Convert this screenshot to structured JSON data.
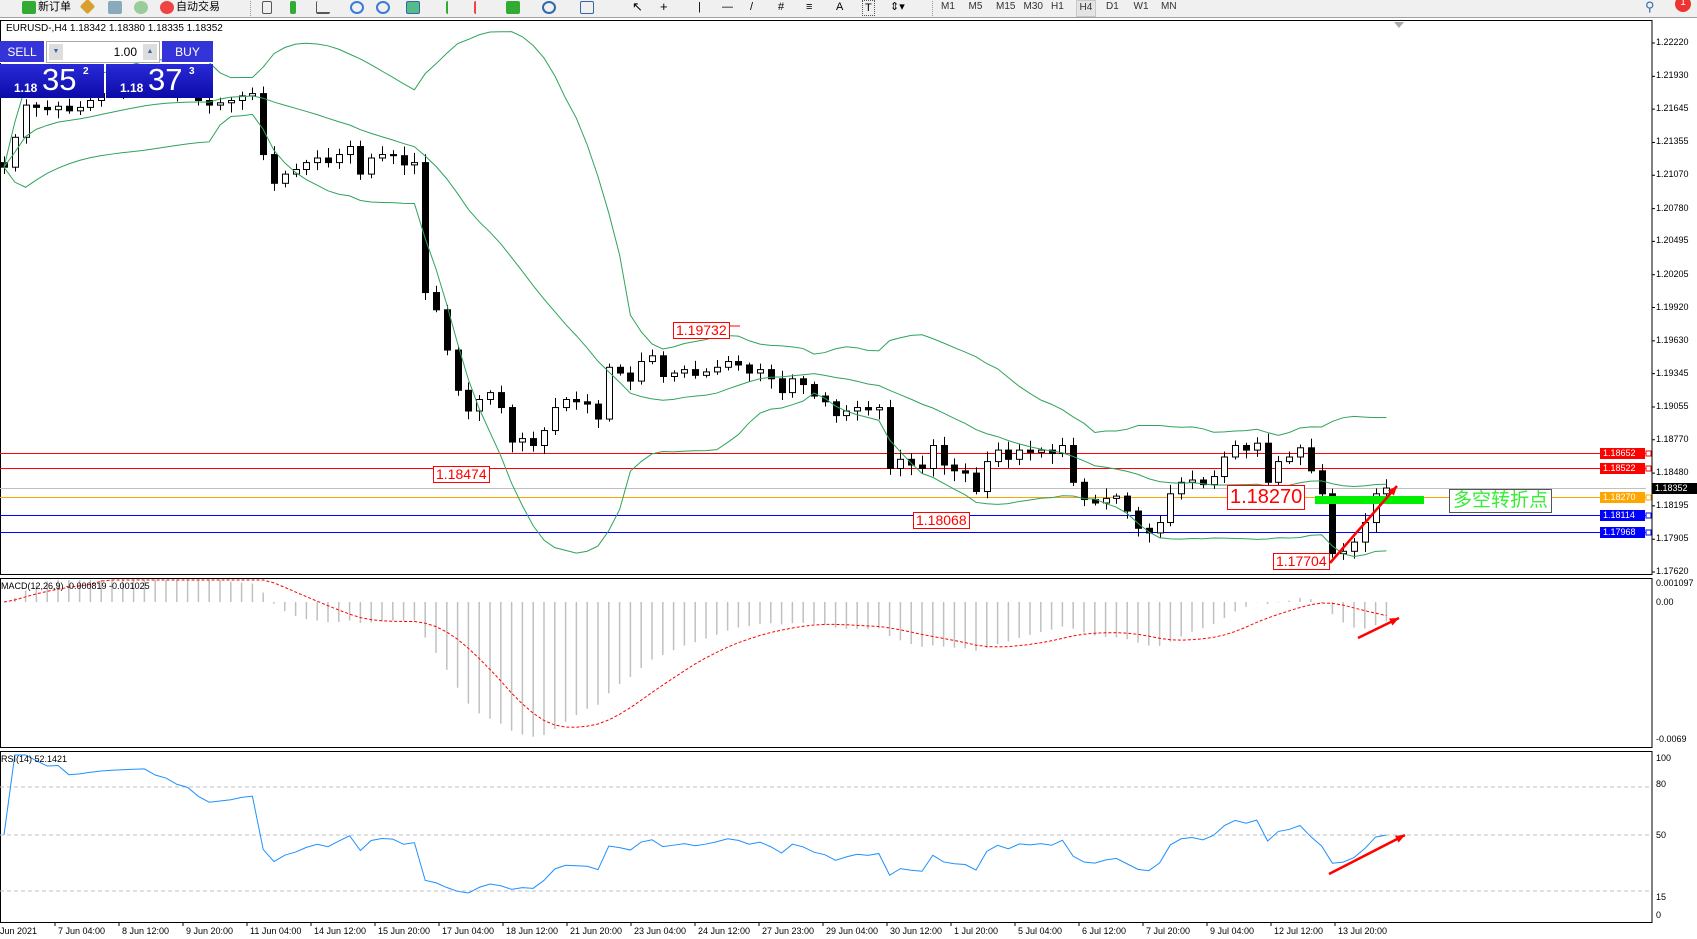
{
  "toolbar": {
    "new_order": "新订单",
    "auto_trading": "自动交易",
    "timeframes": [
      "M1",
      "M5",
      "M15",
      "M30",
      "H1",
      "H4",
      "D1",
      "W1",
      "MN"
    ],
    "selected_timeframe": "H4",
    "notification_count": "1"
  },
  "chart_header": "EURUSD-,H4  1.18342 1.18380 1.18335 1.18352",
  "trade_panel": {
    "sell_label": "SELL",
    "buy_label": "BUY",
    "lot": "1.00",
    "sell_price": {
      "prefix": "1.18",
      "big": "35",
      "sup": "2"
    },
    "buy_price": {
      "prefix": "1.18",
      "big": "37",
      "sup": "3"
    }
  },
  "chart_data": {
    "type": "candlestick",
    "symbol": "EURUSD-",
    "timeframe": "H4",
    "closes": [
      1.2114,
      1.214,
      1.2168,
      1.2166,
      1.2164,
      1.2167,
      1.2163,
      1.2166,
      1.2172,
      1.2178,
      1.2182,
      1.2185,
      1.2188,
      1.219,
      1.2186,
      1.2184,
      1.218,
      1.2178,
      1.2172,
      1.2168,
      1.217,
      1.2172,
      1.2176,
      1.2178,
      1.2125,
      1.21,
      1.2108,
      1.2112,
      1.2118,
      1.2122,
      1.2118,
      1.2125,
      1.2132,
      1.2108,
      1.2122,
      1.2125,
      1.2124,
      1.2116,
      1.2118,
      1.2005,
      1.199,
      1.1955,
      1.192,
      1.1902,
      1.1912,
      1.1918,
      1.1905,
      1.1875,
      1.1878,
      1.1872,
      1.1885,
      1.1905,
      1.1912,
      1.191,
      1.1908,
      1.1895,
      1.194,
      1.1935,
      1.1928,
      1.1945,
      1.195,
      1.1932,
      1.1935,
      1.1938,
      1.1933,
      1.1936,
      1.194,
      1.1945,
      1.1942,
      1.1935,
      1.1938,
      1.193,
      1.1918,
      1.193,
      1.1925,
      1.1915,
      1.191,
      1.1898,
      1.1902,
      1.1905,
      1.1903,
      1.1905,
      1.1852,
      1.186,
      1.1855,
      1.1852,
      1.1872,
      1.1855,
      1.185,
      1.1848,
      1.1832,
      1.1858,
      1.1868,
      1.186,
      1.1868,
      1.1866,
      1.1868,
      1.1865,
      1.1872,
      1.184,
      1.1825,
      1.1822,
      1.1826,
      1.1828,
      1.1815,
      1.18,
      1.1796,
      1.1805,
      1.183,
      1.184,
      1.1842,
      1.1838,
      1.1845,
      1.1862,
      1.1872,
      1.1868,
      1.1874,
      1.184,
      1.1858,
      1.1862,
      1.187,
      1.185,
      1.183,
      1.1778,
      1.178,
      1.1788,
      1.1805,
      1.183,
      1.1835
    ],
    "price_axis": [
      "1.22220",
      "1.21930",
      "1.21645",
      "1.21355",
      "1.21070",
      "1.20780",
      "1.20495",
      "1.20205",
      "1.19920",
      "1.19630",
      "1.19345",
      "1.19055",
      "1.18770",
      "1.18480",
      "1.18195",
      "1.17905",
      "1.17620"
    ],
    "price_range": [
      1.1762,
      1.2222
    ],
    "time_axis": [
      "Jun 2021",
      "7 Jun 04:00",
      "8 Jun 12:00",
      "9 Jun 20:00",
      "11 Jun 04:00",
      "14 Jun 12:00",
      "15 Jun 20:00",
      "17 Jun 04:00",
      "18 Jun 12:00",
      "21 Jun 20:00",
      "23 Jun 04:00",
      "24 Jun 12:00",
      "27 Jun 23:00",
      "29 Jun 04:00",
      "30 Jun 12:00",
      "1 Jul 20:00",
      "5 Jul 04:00",
      "6 Jul 12:00",
      "7 Jul 20:00",
      "9 Jul 04:00",
      "12 Jul 12:00",
      "13 Jul 20:00"
    ],
    "bollinger": {
      "period": 20,
      "deviation": 2,
      "color": "#2fa35a"
    },
    "levels": [
      {
        "price": "1.18652",
        "color": "#ff0000"
      },
      {
        "price": "1.18522",
        "color": "#ff0000"
      },
      {
        "price": "1.18352",
        "color": "#000000",
        "line": "#c0c0c0"
      },
      {
        "price": "1.18270",
        "color": "#ffa500"
      },
      {
        "price": "1.18114",
        "color": "#0000ff"
      },
      {
        "price": "1.17968",
        "color": "#0000ff"
      }
    ],
    "annotations": {
      "high1": "1.19732",
      "low1": "1.18474",
      "low2": "1.18068",
      "pivot": "1.18270",
      "low3": "1.17704",
      "note": "多空转折点"
    },
    "macd": {
      "label": "MACD(12,26,9) -0.000819 -0.001025",
      "axis": [
        "0.001097",
        "0.00",
        "-0.0069"
      ],
      "range": [
        -0.0069,
        0.001097
      ],
      "histogram_color": "#c0c0c0",
      "signal_color": "#ff0000"
    },
    "rsi": {
      "label": "RSI(14) 52.1421",
      "axis": [
        "100",
        "80",
        "50",
        "15",
        "0"
      ],
      "levels": [
        80,
        50,
        15
      ],
      "color": "#1e90ff"
    }
  }
}
